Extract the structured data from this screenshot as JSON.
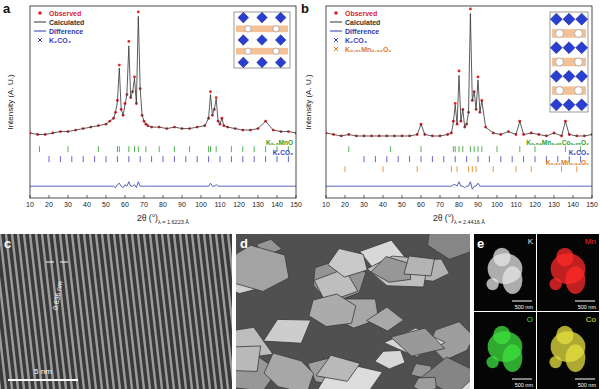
{
  "chart_data": [
    {
      "type": "line",
      "panel_label": "a",
      "x_label": "2θ (°)",
      "x_label_sub": "λ = 1.6223 Å",
      "y_label": "Intensity (A. U.)",
      "x": [
        10,
        14,
        18,
        22,
        26,
        30,
        34,
        38,
        42,
        46,
        50,
        52,
        54,
        55,
        56,
        57,
        58,
        59,
        60,
        61,
        62,
        63,
        64,
        65,
        66,
        67,
        68,
        69,
        70,
        71,
        72,
        74,
        78,
        82,
        86,
        90,
        94,
        98,
        102,
        104,
        105,
        106,
        107,
        108,
        109,
        110,
        111,
        112,
        114,
        118,
        122,
        126,
        130,
        134,
        138,
        142,
        146,
        150
      ],
      "series": [
        {
          "name": "Observed",
          "color": "#e0242a",
          "type": "scatter",
          "marker": "circle",
          "values": [
            14,
            13,
            13,
            14,
            15,
            15,
            16,
            17,
            18,
            19,
            20,
            22,
            24,
            28,
            36,
            60,
            30,
            26,
            34,
            40,
            76,
            38,
            42,
            52,
            34,
            96,
            44,
            26,
            22,
            20,
            19,
            18,
            18,
            17,
            18,
            17,
            17,
            18,
            19,
            24,
            42,
            26,
            30,
            38,
            22,
            20,
            24,
            19,
            18,
            17,
            16,
            16,
            17,
            22,
            16,
            15,
            15,
            14
          ]
        },
        {
          "name": "Calculated",
          "color": "#333333",
          "type": "line",
          "values": [
            14,
            13,
            13,
            14,
            15,
            15,
            16,
            17,
            18,
            19,
            20,
            22,
            24,
            28,
            35,
            58,
            30,
            26,
            33,
            40,
            73,
            38,
            42,
            51,
            34,
            93,
            44,
            26,
            22,
            20,
            19,
            18,
            18,
            17,
            18,
            17,
            17,
            18,
            19,
            24,
            40,
            26,
            30,
            37,
            22,
            20,
            24,
            19,
            18,
            17,
            16,
            16,
            17,
            22,
            16,
            15,
            15,
            14
          ]
        },
        {
          "name": "Difference",
          "color": "#2a3aa8",
          "type": "line",
          "values": [
            -22,
            -22,
            -22,
            -22,
            -22,
            -22,
            -22,
            -22,
            -22,
            -22,
            -22,
            -22,
            -22,
            -23,
            -21,
            -20,
            -22,
            -23,
            -21,
            -22,
            -19,
            -22,
            -22,
            -21,
            -23,
            -19,
            -22,
            -22,
            -22,
            -22,
            -22,
            -22,
            -22,
            -22,
            -22,
            -22,
            -22,
            -22,
            -22,
            -22,
            -20,
            -22,
            -22,
            -21,
            -22,
            -22,
            -22,
            -22,
            -22,
            -22,
            -22,
            -22,
            -22,
            -22,
            -22,
            -22,
            -22,
            -22
          ]
        }
      ],
      "legend_markers": [
        {
          "name": "K₂CO₃",
          "color": "#3b3bc8",
          "marker": "x"
        }
      ],
      "reflections": [
        {
          "name": "K₀.₃MnO",
          "color": "#2ca02c",
          "x": [
            15,
            30,
            46,
            56,
            57,
            62,
            65,
            67,
            71,
            78,
            86,
            94,
            104,
            105,
            108,
            116,
            122,
            128,
            134,
            140,
            146
          ]
        },
        {
          "name": "K₂CO₃",
          "color": "#3b3bc8",
          "x": [
            20,
            26,
            32,
            38,
            44,
            50,
            56,
            62,
            68,
            74,
            80,
            86,
            92,
            98,
            104,
            110,
            116,
            122,
            128,
            134,
            140,
            146
          ]
        }
      ],
      "xlim": [
        10,
        150
      ],
      "xticks": [
        10,
        20,
        30,
        40,
        50,
        60,
        70,
        80,
        90,
        100,
        110,
        120,
        130,
        140,
        150
      ],
      "ylim": [
        -30,
        100
      ],
      "tick_labels": "x",
      "legend": "upper left"
    },
    {
      "type": "line",
      "panel_label": "b",
      "x_label": "2θ (°)",
      "x_label_sub": "λ = 2.4416 Å",
      "y_label": "Intensity (A. U.)",
      "x": [
        10,
        14,
        18,
        22,
        26,
        30,
        34,
        38,
        42,
        46,
        50,
        54,
        58,
        60,
        62,
        66,
        70,
        74,
        76,
        77,
        78,
        79,
        80,
        81,
        82,
        83,
        84,
        85,
        86,
        87,
        88,
        89,
        90,
        91,
        92,
        94,
        98,
        102,
        106,
        110,
        112,
        114,
        118,
        122,
        126,
        130,
        134,
        136,
        138,
        142,
        146,
        150
      ],
      "series": [
        {
          "name": "Observed",
          "color": "#e0242a",
          "type": "scatter",
          "marker": "circle",
          "values": [
            14,
            13,
            12,
            13,
            12,
            12,
            12,
            12,
            12,
            12,
            12,
            12,
            13,
            20,
            13,
            12,
            12,
            13,
            14,
            22,
            34,
            20,
            56,
            22,
            30,
            18,
            20,
            28,
            98,
            36,
            42,
            30,
            52,
            28,
            36,
            18,
            14,
            13,
            15,
            13,
            22,
            13,
            14,
            13,
            12,
            14,
            12,
            22,
            13,
            12,
            12,
            13
          ]
        },
        {
          "name": "Calculated",
          "color": "#333333",
          "type": "line",
          "values": [
            14,
            13,
            12,
            13,
            12,
            12,
            12,
            12,
            12,
            12,
            12,
            12,
            13,
            20,
            13,
            12,
            12,
            13,
            14,
            21,
            33,
            20,
            53,
            22,
            30,
            18,
            20,
            28,
            95,
            36,
            42,
            30,
            50,
            28,
            36,
            18,
            14,
            13,
            15,
            13,
            22,
            13,
            14,
            13,
            12,
            14,
            12,
            22,
            13,
            12,
            12,
            13
          ]
        },
        {
          "name": "Difference",
          "color": "#2a3aa8",
          "type": "line",
          "values": [
            -22,
            -22,
            -22,
            -22,
            -22,
            -22,
            -22,
            -22,
            -22,
            -22,
            -22,
            -22,
            -22,
            -22,
            -22,
            -22,
            -22,
            -22,
            -22,
            -21,
            -21,
            -22,
            -19,
            -22,
            -22,
            -23,
            -22,
            -22,
            -19,
            -24,
            -22,
            -22,
            -20,
            -22,
            -22,
            -22,
            -22,
            -22,
            -22,
            -22,
            -22,
            -22,
            -22,
            -22,
            -22,
            -22,
            -22,
            -22,
            -22,
            -22,
            -22,
            -22
          ]
        }
      ],
      "legend_markers": [
        {
          "name": "K₂CO₃",
          "color": "#3b3bc8",
          "marker": "x"
        },
        {
          "name": "K₀.₅₁Mn₀.₉₄O₂",
          "color": "#e07a1a",
          "marker": "x"
        }
      ],
      "reflections": [
        {
          "name": "K₀.₅₄Mn₀.₉₀Co₀.₀₅O₂",
          "color": "#2ca02c",
          "x": [
            22,
            44,
            60,
            77,
            78,
            80,
            82,
            86,
            88,
            90,
            92,
            100,
            112,
            120,
            136,
            144
          ]
        },
        {
          "name": "K₂CO₃",
          "color": "#3b3bc8",
          "x": [
            30,
            36,
            42,
            48,
            54,
            60,
            66,
            72,
            78,
            84,
            90,
            96,
            102,
            108,
            114,
            120,
            126,
            132,
            138,
            144
          ]
        },
        {
          "name": "K₀.₅₁Mn₀.₉₄O₂",
          "color": "#e07a1a",
          "x": [
            20,
            40,
            58,
            76,
            79,
            85,
            87,
            89,
            98,
            110,
            118,
            134,
            142
          ]
        }
      ],
      "xlim": [
        10,
        150
      ],
      "xticks": [
        10,
        20,
        30,
        40,
        50,
        60,
        70,
        80,
        90,
        100,
        110,
        120,
        130,
        140,
        150
      ],
      "ylim": [
        -30,
        100
      ],
      "tick_labels": "x",
      "legend": "upper left"
    }
  ],
  "panels": {
    "c": {
      "label": "c",
      "annotation": "0.636 nm",
      "scale_bar": "5 nm"
    },
    "d": {
      "label": "d"
    },
    "e": {
      "label": "e",
      "scale_bar": "500 nm",
      "maps": [
        {
          "label": "K",
          "color": "#e6e6e6"
        },
        {
          "label": "Mn",
          "color": "#ff2a2a"
        },
        {
          "label": "O",
          "color": "#3ee03e"
        },
        {
          "label": "Co",
          "color": "#e6e040"
        }
      ]
    }
  }
}
